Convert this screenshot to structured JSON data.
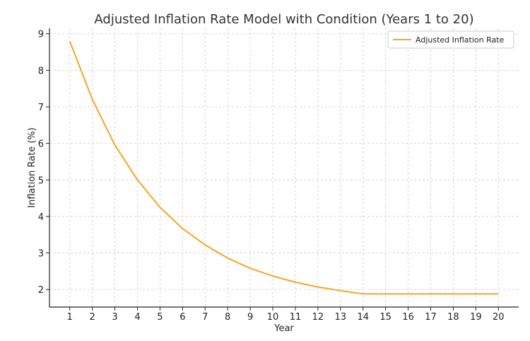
{
  "chart_data": {
    "type": "line",
    "title": "Adjusted Inflation Rate Model with Condition (Years 1 to 20)",
    "xlabel": "Year",
    "ylabel": "Inflation Rate (%)",
    "x": [
      1,
      2,
      3,
      4,
      5,
      6,
      7,
      8,
      9,
      10,
      11,
      12,
      13,
      14,
      15,
      16,
      17,
      18,
      19,
      20
    ],
    "series": [
      {
        "name": "Adjusted Inflation Rate",
        "color": "#f5a623",
        "values": [
          8.8,
          7.2,
          5.95,
          5.0,
          4.25,
          3.67,
          3.22,
          2.86,
          2.58,
          2.37,
          2.2,
          2.07,
          1.97,
          1.88,
          1.88,
          1.88,
          1.88,
          1.88,
          1.88,
          1.88
        ]
      }
    ],
    "xlim": [
      0.1,
      20.9
    ],
    "ylim": [
      1.52,
      9.15
    ],
    "xticks": [
      1,
      2,
      3,
      4,
      5,
      6,
      7,
      8,
      9,
      10,
      11,
      12,
      13,
      14,
      15,
      16,
      17,
      18,
      19,
      20
    ],
    "yticks": [
      2,
      3,
      4,
      5,
      6,
      7,
      8,
      9
    ],
    "grid": true,
    "legend_position": "top-right"
  }
}
